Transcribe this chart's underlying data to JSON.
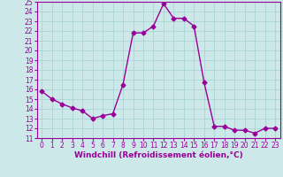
{
  "x": [
    0,
    1,
    2,
    3,
    4,
    5,
    6,
    7,
    8,
    9,
    10,
    11,
    12,
    13,
    14,
    15,
    16,
    17,
    18,
    19,
    20,
    21,
    22,
    23
  ],
  "y": [
    15.8,
    15.0,
    14.5,
    14.1,
    13.8,
    13.0,
    13.3,
    13.5,
    16.5,
    21.8,
    21.8,
    22.5,
    24.8,
    23.3,
    23.3,
    22.5,
    16.7,
    12.2,
    12.2,
    11.8,
    11.8,
    11.5,
    12.0,
    12.0
  ],
  "color": "#990099",
  "bg_color": "#cce8e8",
  "grid_color": "#aad4d4",
  "xlabel": "Windchill (Refroidissement éolien,°C)",
  "ylim": [
    11,
    25
  ],
  "xlim": [
    -0.5,
    23.5
  ],
  "yticks": [
    11,
    12,
    13,
    14,
    15,
    16,
    17,
    18,
    19,
    20,
    21,
    22,
    23,
    24,
    25
  ],
  "xticks": [
    0,
    1,
    2,
    3,
    4,
    5,
    6,
    7,
    8,
    9,
    10,
    11,
    12,
    13,
    14,
    15,
    16,
    17,
    18,
    19,
    20,
    21,
    22,
    23
  ],
  "marker": "D",
  "markersize": 2.5,
  "linewidth": 1.0,
  "xlabel_fontsize": 6.5,
  "tick_fontsize": 5.5
}
